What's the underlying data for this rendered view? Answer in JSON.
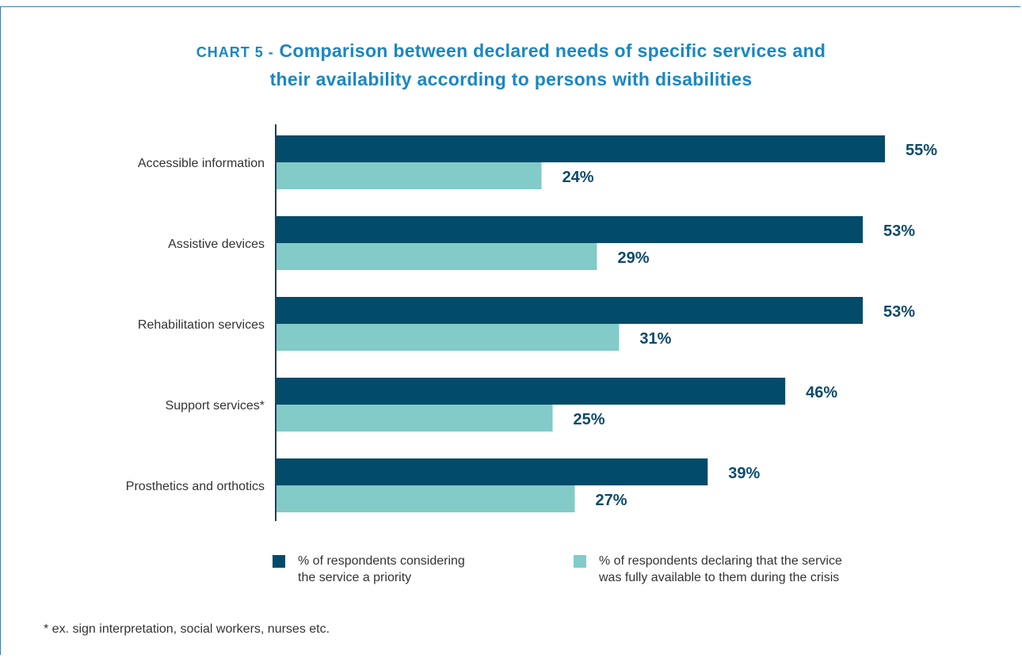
{
  "chart_title": {
    "prefix": "CHART 5 -",
    "line1": "Comparison between declared needs of specific services and",
    "line2": "their availability according to persons with disabilities"
  },
  "chart_data": {
    "type": "bar",
    "orientation": "horizontal",
    "categories": [
      "Accessible information",
      "Assistive devices",
      "Rehabilitation services",
      "Support services*",
      "Prosthetics and orthotics"
    ],
    "series": [
      {
        "name": "% of respondents considering the service a priority",
        "values": [
          55,
          53,
          53,
          46,
          39
        ],
        "labels": [
          "55%",
          "53%",
          "53%",
          "46%",
          "39%"
        ],
        "color": "#024b6b"
      },
      {
        "name": "% of respondents declaring that the service was fully available to them during the crisis",
        "values": [
          24,
          29,
          31,
          25,
          27
        ],
        "labels": [
          "24%",
          "29%",
          "31%",
          "25%",
          "27%"
        ],
        "color": "#82cbc8"
      }
    ],
    "xlim": [
      0,
      55
    ],
    "grid": false,
    "legend_position": "bottom"
  },
  "legend": {
    "priority_line1": "% of respondents considering",
    "priority_line2": "the service a priority",
    "available_line1": "% of respondents declaring that the service",
    "available_line2": "was fully available to them during the crisis"
  },
  "footnote": "* ex. sign interpretation, social workers, nurses etc.",
  "colors": {
    "title": "#1b86c3",
    "priority_bar": "#024b6b",
    "available_bar": "#82cbc8",
    "label_text": "#0c4a6c",
    "category_text": "#333333"
  }
}
